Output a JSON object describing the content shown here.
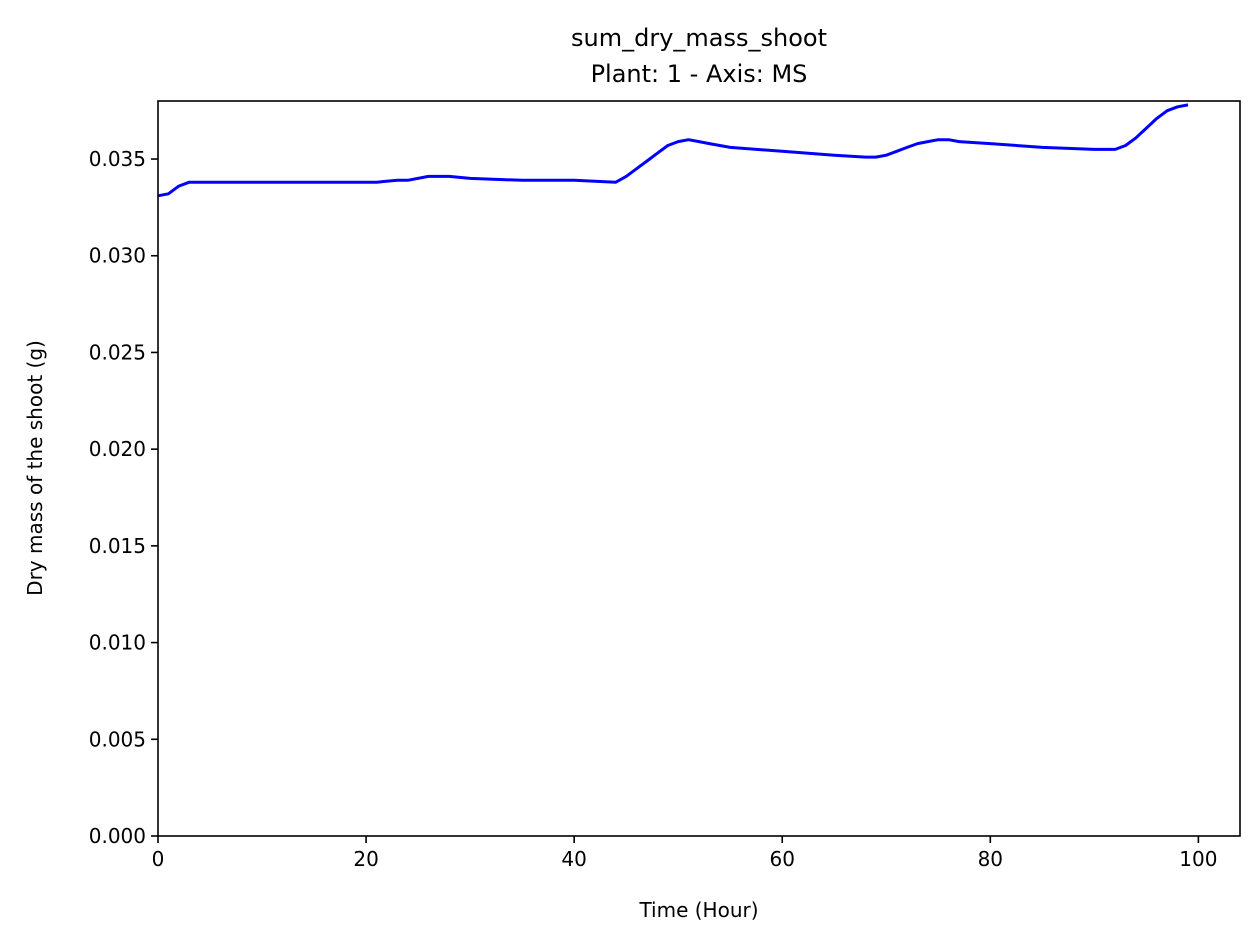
{
  "chart_data": {
    "type": "line",
    "title": "sum_dry_mass_shoot",
    "subtitle": "Plant: 1 - Axis: MS",
    "xlabel": "Time (Hour)",
    "ylabel": "Dry mass of the shoot (g)",
    "xlim": [
      0,
      104
    ],
    "ylim": [
      0,
      0.038
    ],
    "xticks": [
      0,
      20,
      40,
      60,
      80,
      100
    ],
    "yticks": [
      0.0,
      0.005,
      0.01,
      0.015,
      0.02,
      0.025,
      0.03,
      0.035
    ],
    "ytick_labels": [
      "0.000",
      "0.005",
      "0.010",
      "0.015",
      "0.020",
      "0.025",
      "0.030",
      "0.035"
    ],
    "grid": false,
    "line_color": "#0000ff",
    "series": [
      {
        "x": [
          0,
          1,
          2,
          3,
          5,
          10,
          15,
          20,
          21,
          23,
          24,
          26,
          27,
          28,
          30,
          35,
          40,
          44,
          45,
          46,
          47,
          48,
          49,
          50,
          51,
          52,
          53,
          55,
          60,
          65,
          68,
          69,
          70,
          71,
          72,
          73,
          74,
          75,
          76,
          77,
          80,
          85,
          90,
          92,
          93,
          94,
          95,
          96,
          97,
          98,
          99
        ],
        "y": [
          0.0331,
          0.0332,
          0.0336,
          0.0338,
          0.0338,
          0.0338,
          0.0338,
          0.0338,
          0.0338,
          0.0339,
          0.0339,
          0.0341,
          0.0341,
          0.0341,
          0.034,
          0.0339,
          0.0339,
          0.0338,
          0.0341,
          0.0345,
          0.0349,
          0.0353,
          0.0357,
          0.0359,
          0.036,
          0.0359,
          0.0358,
          0.0356,
          0.0354,
          0.0352,
          0.0351,
          0.0351,
          0.0352,
          0.0354,
          0.0356,
          0.0358,
          0.0359,
          0.036,
          0.036,
          0.0359,
          0.0358,
          0.0356,
          0.0355,
          0.0355,
          0.0357,
          0.0361,
          0.0366,
          0.0371,
          0.0375,
          0.0377,
          0.0378
        ]
      }
    ]
  }
}
